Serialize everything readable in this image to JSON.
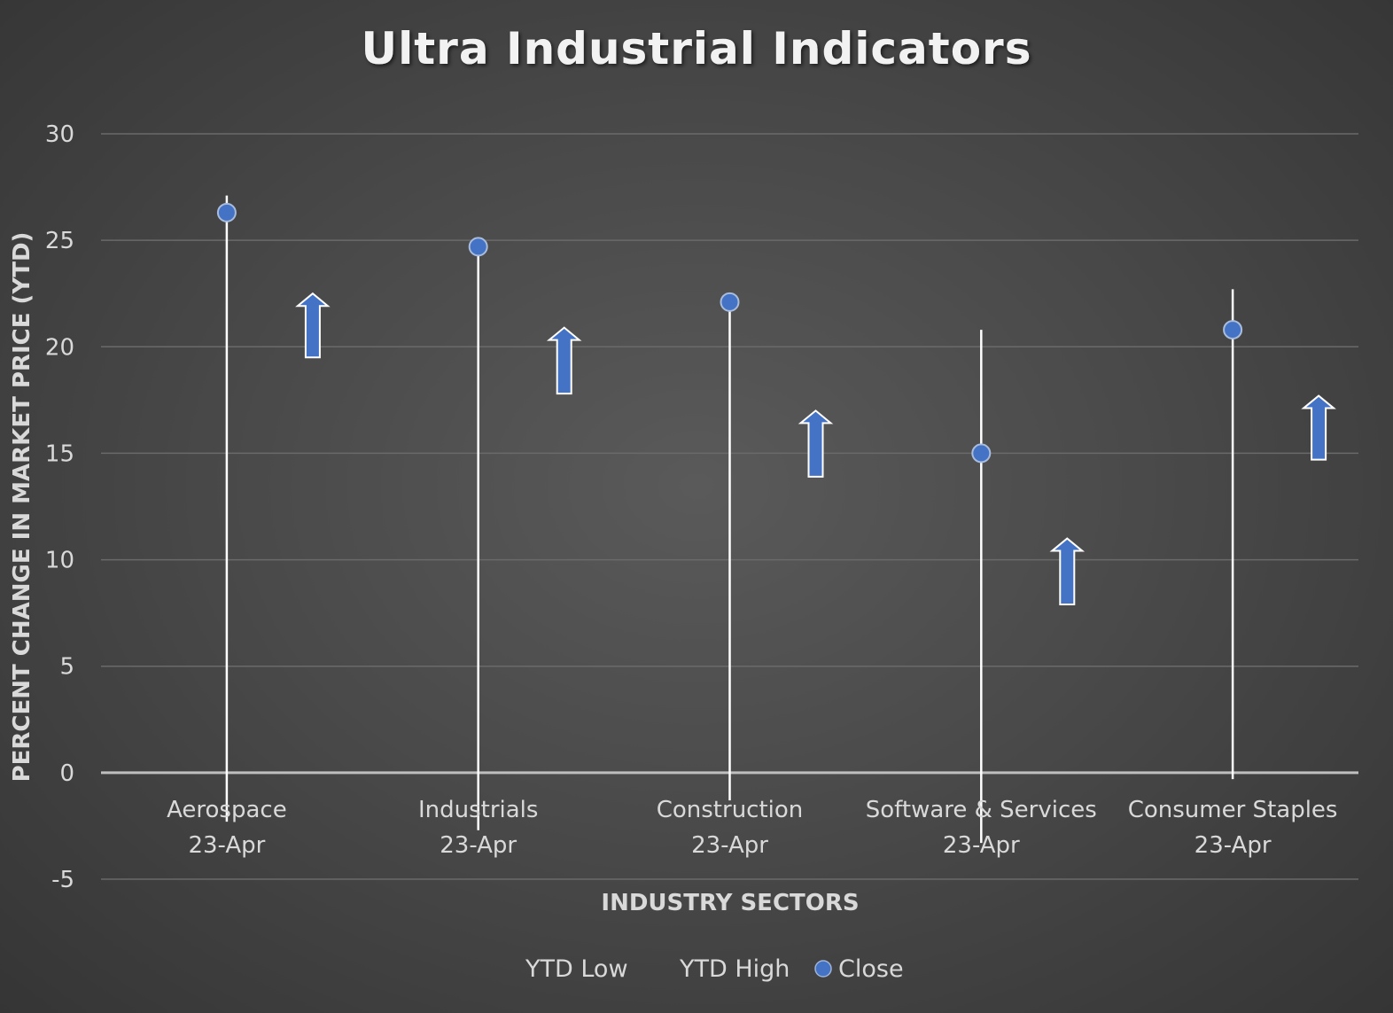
{
  "chart_data": {
    "type": "stock-hilo",
    "title": "Ultra Industrial Indicators",
    "xlabel": "INDUSTRY SECTORS",
    "ylabel": "PERCENT CHANGE IN MARKET PRICE (YTD)",
    "ylim": [
      -5,
      30
    ],
    "yticks": [
      -5,
      0,
      5,
      10,
      15,
      20,
      25,
      30
    ],
    "grid": true,
    "legend_position": "bottom",
    "categories": [
      [
        "Aerospace",
        "23-Apr"
      ],
      [
        "Industrials",
        "23-Apr"
      ],
      [
        "Construction",
        "23-Apr"
      ],
      [
        "Software & Services",
        "23-Apr"
      ],
      [
        "Consumer Staples",
        "23-Apr"
      ]
    ],
    "series": [
      {
        "name": "YTD Low",
        "values": [
          -2.3,
          -2.7,
          -1.3,
          -3.3,
          -0.3
        ]
      },
      {
        "name": "YTD High",
        "values": [
          27.1,
          24.7,
          22.1,
          20.8,
          22.7
        ]
      },
      {
        "name": "Close",
        "values": [
          26.3,
          24.7,
          22.1,
          15.0,
          20.8
        ]
      }
    ],
    "arrows": [
      {
        "from": 19.5,
        "to": 22.5
      },
      {
        "from": 17.8,
        "to": 20.9
      },
      {
        "from": 13.9,
        "to": 17.0
      },
      {
        "from": 7.9,
        "to": 11.0
      },
      {
        "from": 14.7,
        "to": 17.7
      }
    ],
    "colors": {
      "marker": "#4472c4",
      "arrow": "#4472c4",
      "hilo_line": "#ffffff",
      "grid": "#6a6a6a",
      "axis": "#bfbfbf"
    }
  }
}
